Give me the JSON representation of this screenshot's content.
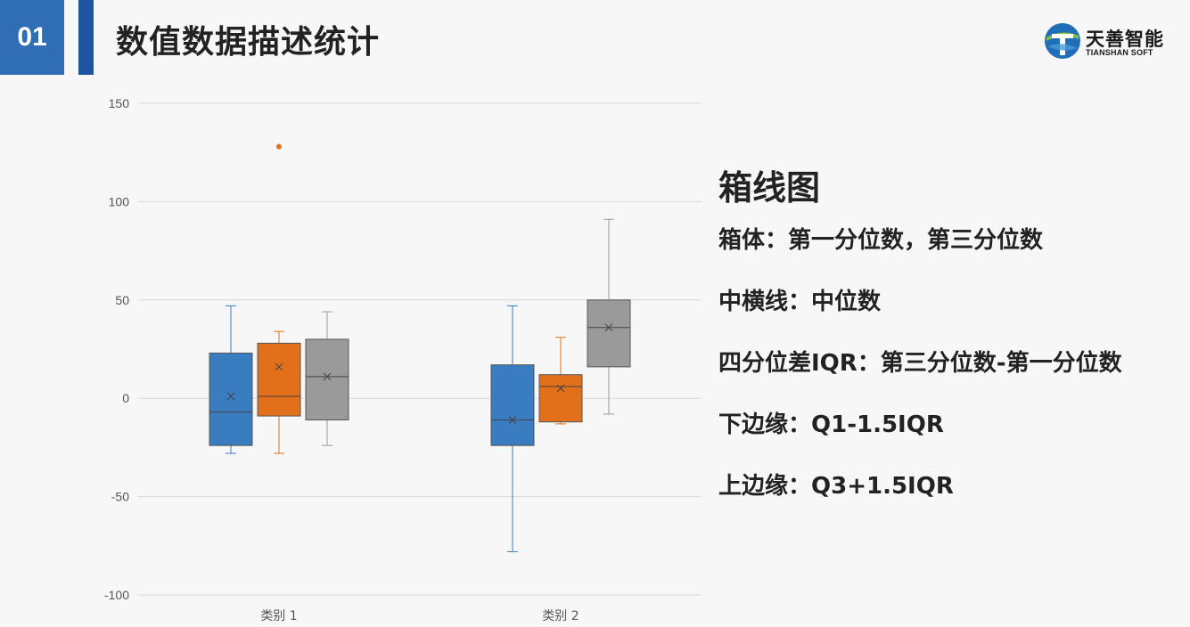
{
  "header": {
    "slide_number": "01",
    "title": "数值数据描述统计",
    "logo_cn": "天善智能",
    "logo_en": "TIANSHAN SOFT"
  },
  "colors": {
    "blue": "#3a7cc0",
    "orange": "#e2701b",
    "gray": "#9a9a9a",
    "accent": "#2f6eb5"
  },
  "panel": {
    "title": "箱线图",
    "items": [
      "箱体：第一分位数，第三分位数",
      "中横线：中位数",
      "四分位差IQR：第三分位数-第一分位数",
      "下边缘：Q1-1.5IQR",
      "上边缘：Q3+1.5IQR"
    ]
  },
  "chart_data": {
    "type": "box",
    "categories": [
      "类别 1",
      "类别 2"
    ],
    "ylim": [
      -100,
      150
    ],
    "yticks": [
      150,
      100,
      50,
      0,
      -50,
      -100
    ],
    "grid": true,
    "series": [
      {
        "color": "#3a7cc0",
        "boxes": [
          {
            "min": -28,
            "q1": -24,
            "median": -7,
            "q3": 23,
            "max": 47,
            "mean": 1,
            "outliers": []
          },
          {
            "min": -78,
            "q1": -24,
            "median": -11,
            "q3": 17,
            "max": 47,
            "mean": -11,
            "outliers": []
          }
        ]
      },
      {
        "color": "#e2701b",
        "boxes": [
          {
            "min": -28,
            "q1": -9,
            "median": 1,
            "q3": 28,
            "max": 34,
            "mean": 16,
            "outliers": [
              128
            ]
          },
          {
            "min": -13,
            "q1": -12,
            "median": 6,
            "q3": 12,
            "max": 31,
            "mean": 5,
            "outliers": []
          }
        ]
      },
      {
        "color": "#9a9a9a",
        "boxes": [
          {
            "min": -24,
            "q1": -11,
            "median": 11,
            "q3": 30,
            "max": 44,
            "mean": 11,
            "outliers": []
          },
          {
            "min": -8,
            "q1": 16,
            "median": 36,
            "q3": 50,
            "max": 91,
            "mean": 36,
            "outliers": []
          }
        ]
      }
    ]
  }
}
